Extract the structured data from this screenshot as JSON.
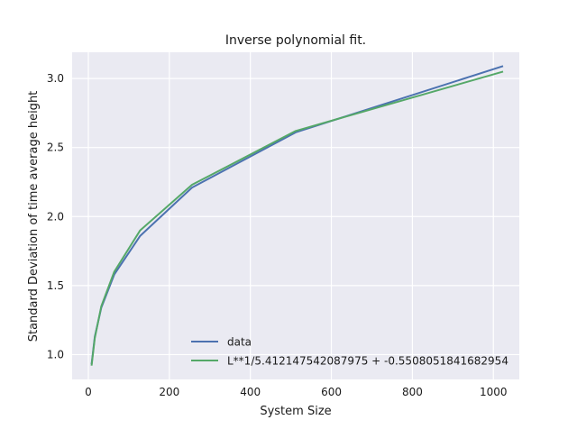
{
  "chart_data": {
    "type": "line",
    "title": "Inverse polynomial fit.",
    "xlabel": "System Size",
    "ylabel": "Standard Deviation of time average height",
    "xlim": [
      -40,
      1064
    ],
    "ylim": [
      0.82,
      3.19
    ],
    "xticks": [
      0,
      200,
      400,
      600,
      800,
      1000
    ],
    "yticks": [
      1.0,
      1.5,
      2.0,
      2.5,
      3.0
    ],
    "xtick_labels": [
      "0",
      "200",
      "400",
      "600",
      "800",
      "1000"
    ],
    "ytick_labels": [
      "1.0",
      "1.5",
      "2.0",
      "2.5",
      "3.0"
    ],
    "grid": true,
    "legend_position": "lower-center",
    "x": [
      8,
      16,
      32,
      64,
      128,
      256,
      512,
      1024
    ],
    "series": [
      {
        "name": "data",
        "color": "#4c72b0",
        "values": [
          0.93,
          1.13,
          1.34,
          1.58,
          1.86,
          2.21,
          2.61,
          3.09
        ]
      },
      {
        "name": "L**1/5.412147542087975 + -0.5508051841682954",
        "color": "#55a868",
        "values": [
          0.92,
          1.12,
          1.35,
          1.6,
          1.9,
          2.23,
          2.62,
          3.05
        ]
      }
    ],
    "colors": {
      "background": "#eaeaf2",
      "grid": "#ffffff"
    }
  }
}
